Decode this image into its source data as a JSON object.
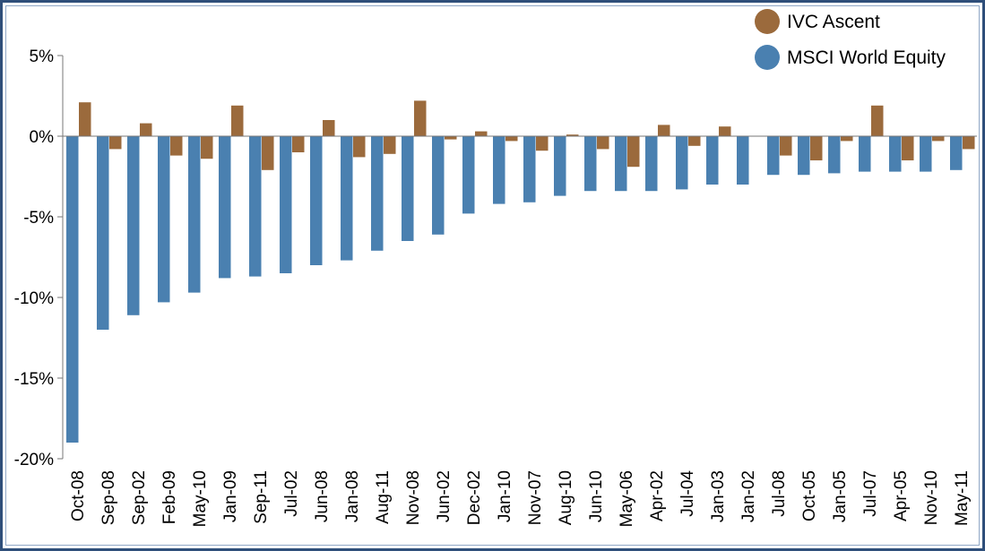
{
  "chart_data": {
    "type": "bar",
    "categories": [
      "Oct-08",
      "Sep-08",
      "Sep-02",
      "Feb-09",
      "May-10",
      "Jan-09",
      "Sep-11",
      "Jul-02",
      "Jun-08",
      "Jan-08",
      "Aug-11",
      "Nov-08",
      "Jun-02",
      "Dec-02",
      "Jan-10",
      "Nov-07",
      "Aug-10",
      "Jun-10",
      "May-06",
      "Apr-02",
      "Jul-04",
      "Jan-03",
      "Jan-02",
      "Jul-08",
      "Oct-05",
      "Jan-05",
      "Jul-07",
      "Apr-05",
      "Nov-10",
      "May-11"
    ],
    "series": [
      {
        "name": "IVC Ascent",
        "color": "#9b6a3c",
        "values": [
          2.1,
          -0.8,
          0.8,
          -1.2,
          -1.4,
          1.9,
          -2.1,
          -1.0,
          1.0,
          -1.3,
          -1.1,
          2.2,
          -0.2,
          0.3,
          -0.3,
          -0.9,
          0.1,
          -0.8,
          -1.9,
          0.7,
          -0.6,
          0.6,
          0.0,
          -1.2,
          -1.5,
          -0.3,
          1.9,
          -1.5,
          -0.3,
          -0.8
        ]
      },
      {
        "name": "MSCI World Equity",
        "color": "#4a80b0",
        "values": [
          -19.0,
          -12.0,
          -11.1,
          -10.3,
          -9.7,
          -8.8,
          -8.7,
          -8.5,
          -8.0,
          -7.7,
          -7.1,
          -6.5,
          -6.1,
          -4.8,
          -4.2,
          -4.1,
          -3.7,
          -3.4,
          -3.4,
          -3.4,
          -3.3,
          -3.0,
          -3.0,
          -2.4,
          -2.4,
          -2.3,
          -2.2,
          -2.2,
          -2.2,
          -2.1
        ]
      }
    ],
    "yticks": [
      "5%",
      "0%",
      "-5%",
      "-10%",
      "-15%",
      "-20%"
    ],
    "ylim": [
      -20,
      5
    ],
    "grid": false,
    "legend": "top-right"
  }
}
